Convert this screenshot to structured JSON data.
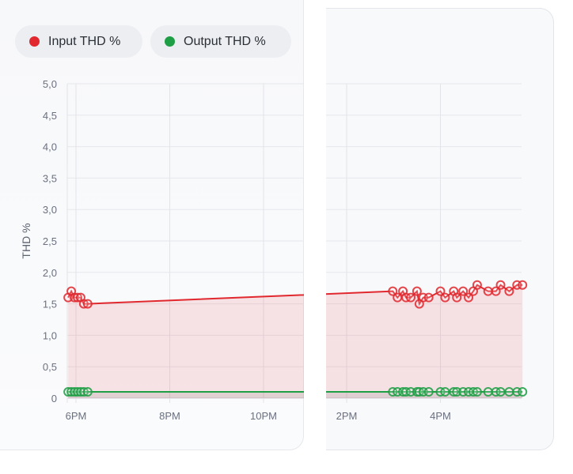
{
  "legend": {
    "input": {
      "label": "Input THD %",
      "color": "#e0282e"
    },
    "output": {
      "label": "Output THD %",
      "color": "#1e9e45"
    }
  },
  "chart_data": {
    "type": "line",
    "ylabel": "THD %",
    "ylim": [
      0,
      5
    ],
    "yticks": [
      "0",
      "0,5",
      "1,0",
      "1,5",
      "2,0",
      "2,5",
      "3,0",
      "3,5",
      "4,0",
      "4,5",
      "5,0"
    ],
    "grid": true,
    "legend_position": "top-left",
    "panels": [
      {
        "xticks": [
          {
            "label": "6PM",
            "time": "18:00"
          },
          {
            "label": "8PM",
            "time": "20:00"
          },
          {
            "label": "10PM",
            "time": "22:00"
          }
        ],
        "series": [
          {
            "name": "Input THD %",
            "points": [
              [
                "17:50",
                1.6
              ],
              [
                "17:54",
                1.7
              ],
              [
                "17:58",
                1.6
              ],
              [
                "18:02",
                1.6
              ],
              [
                "18:06",
                1.6
              ],
              [
                "18:10",
                1.5
              ],
              [
                "18:15",
                1.5
              ]
            ]
          },
          {
            "name": "Output THD %",
            "points": [
              [
                "17:50",
                0.1
              ],
              [
                "17:54",
                0.1
              ],
              [
                "17:58",
                0.1
              ],
              [
                "18:02",
                0.1
              ],
              [
                "18:06",
                0.1
              ],
              [
                "18:10",
                0.1
              ],
              [
                "18:15",
                0.1
              ]
            ]
          }
        ]
      },
      {
        "xticks": [
          {
            "label": "2PM",
            "time": "14:00"
          },
          {
            "label": "4PM",
            "time": "16:00"
          }
        ],
        "series": [
          {
            "name": "Input THD %",
            "points": [
              [
                "14:59",
                1.7
              ],
              [
                "15:05",
                1.6
              ],
              [
                "15:12",
                1.7
              ],
              [
                "15:16",
                1.6
              ],
              [
                "15:22",
                1.6
              ],
              [
                "15:30",
                1.7
              ],
              [
                "15:33",
                1.5
              ],
              [
                "15:38",
                1.6
              ],
              [
                "15:45",
                1.6
              ],
              [
                "16:00",
                1.7
              ],
              [
                "16:06",
                1.6
              ],
              [
                "16:17",
                1.7
              ],
              [
                "16:21",
                1.6
              ],
              [
                "16:29",
                1.7
              ],
              [
                "16:36",
                1.6
              ],
              [
                "16:42",
                1.7
              ],
              [
                "16:47",
                1.8
              ],
              [
                "17:01",
                1.7
              ],
              [
                "17:11",
                1.7
              ],
              [
                "17:17",
                1.8
              ],
              [
                "17:28",
                1.7
              ],
              [
                "17:38",
                1.8
              ],
              [
                "17:45",
                1.8
              ]
            ]
          },
          {
            "name": "Output THD %",
            "points": [
              [
                "14:59",
                0.1
              ],
              [
                "15:05",
                0.1
              ],
              [
                "15:12",
                0.1
              ],
              [
                "15:16",
                0.1
              ],
              [
                "15:22",
                0.1
              ],
              [
                "15:30",
                0.1
              ],
              [
                "15:33",
                0.1
              ],
              [
                "15:38",
                0.1
              ],
              [
                "15:45",
                0.1
              ],
              [
                "16:00",
                0.1
              ],
              [
                "16:06",
                0.1
              ],
              [
                "16:17",
                0.1
              ],
              [
                "16:21",
                0.1
              ],
              [
                "16:29",
                0.1
              ],
              [
                "16:36",
                0.1
              ],
              [
                "16:42",
                0.1
              ],
              [
                "16:47",
                0.1
              ],
              [
                "17:01",
                0.1
              ],
              [
                "17:11",
                0.1
              ],
              [
                "17:17",
                0.1
              ],
              [
                "17:28",
                0.1
              ],
              [
                "17:38",
                0.1
              ],
              [
                "17:45",
                0.1
              ]
            ]
          }
        ]
      }
    ]
  }
}
